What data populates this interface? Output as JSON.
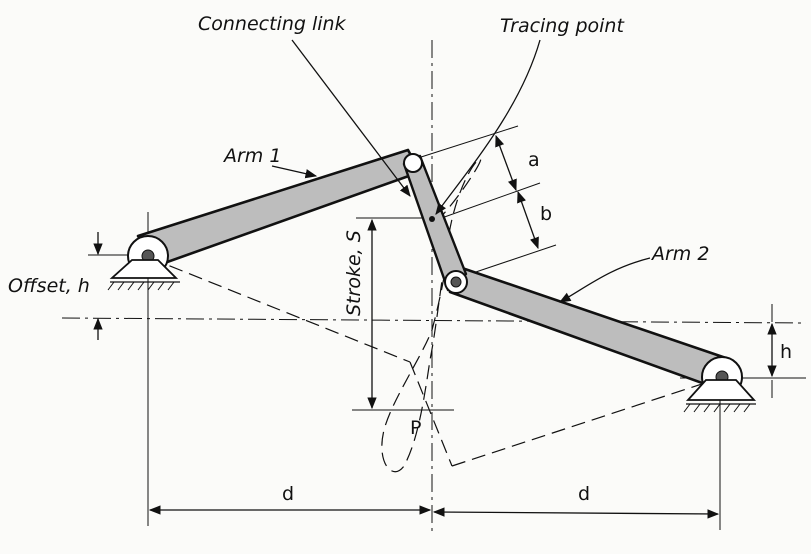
{
  "labels": {
    "connecting_link": "Connecting link",
    "tracing_point": "Tracing point",
    "arm_1": "Arm 1",
    "arm_2": "Arm 2",
    "offset": "Offset, h",
    "stroke": "Stroke, S",
    "a": "a",
    "b": "b",
    "h": "h",
    "P": "P",
    "d_left": "d",
    "d_right": "d"
  }
}
